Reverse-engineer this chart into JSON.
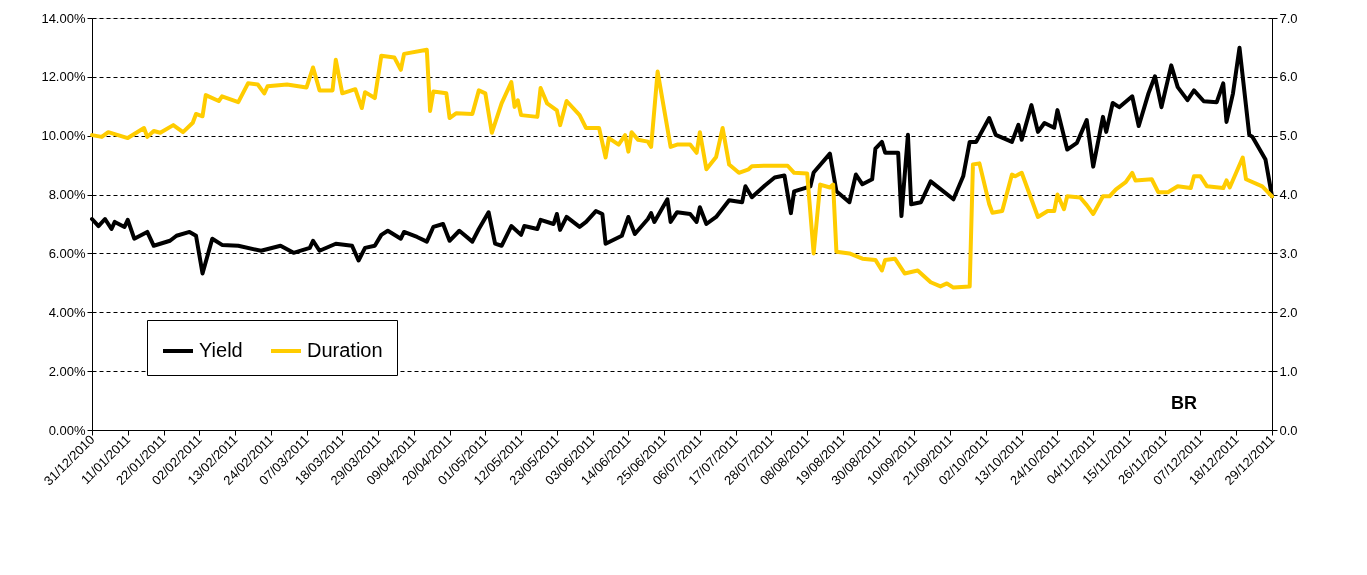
{
  "chart_data": {
    "type": "line",
    "xlim": [
      "2010-12-31",
      "2011-12-29"
    ],
    "xticks": [
      {
        "value": "2010-12-31",
        "label": "31/12/2010"
      },
      {
        "value": "2011-01-11",
        "label": "11/01/2011"
      },
      {
        "value": "2011-01-22",
        "label": "22/01/2011"
      },
      {
        "value": "2011-02-02",
        "label": "02/02/2011"
      },
      {
        "value": "2011-02-13",
        "label": "13/02/2011"
      },
      {
        "value": "2011-02-24",
        "label": "24/02/2011"
      },
      {
        "value": "2011-03-07",
        "label": "07/03/2011"
      },
      {
        "value": "2011-03-18",
        "label": "18/03/2011"
      },
      {
        "value": "2011-03-29",
        "label": "29/03/2011"
      },
      {
        "value": "2011-04-09",
        "label": "09/04/2011"
      },
      {
        "value": "2011-04-20",
        "label": "20/04/2011"
      },
      {
        "value": "2011-05-01",
        "label": "01/05/2011"
      },
      {
        "value": "2011-05-12",
        "label": "12/05/2011"
      },
      {
        "value": "2011-05-23",
        "label": "23/05/2011"
      },
      {
        "value": "2011-06-03",
        "label": "03/06/2011"
      },
      {
        "value": "2011-06-14",
        "label": "14/06/2011"
      },
      {
        "value": "2011-06-25",
        "label": "25/06/2011"
      },
      {
        "value": "2011-07-06",
        "label": "06/07/2011"
      },
      {
        "value": "2011-07-17",
        "label": "17/07/2011"
      },
      {
        "value": "2011-07-28",
        "label": "28/07/2011"
      },
      {
        "value": "2011-08-08",
        "label": "08/08/2011"
      },
      {
        "value": "2011-08-19",
        "label": "19/08/2011"
      },
      {
        "value": "2011-08-30",
        "label": "30/08/2011"
      },
      {
        "value": "2011-09-10",
        "label": "10/09/2011"
      },
      {
        "value": "2011-09-21",
        "label": "21/09/2011"
      },
      {
        "value": "2011-10-02",
        "label": "02/10/2011"
      },
      {
        "value": "2011-10-13",
        "label": "13/10/2011"
      },
      {
        "value": "2011-10-24",
        "label": "24/10/2011"
      },
      {
        "value": "2011-11-04",
        "label": "04/11/2011"
      },
      {
        "value": "2011-11-15",
        "label": "15/11/2011"
      },
      {
        "value": "2011-11-26",
        "label": "26/11/2011"
      },
      {
        "value": "2011-12-07",
        "label": "07/12/2011"
      },
      {
        "value": "2011-12-18",
        "label": "18/12/2011"
      },
      {
        "value": "2011-12-29",
        "label": "29/12/2011"
      }
    ],
    "ylim": [
      0,
      14
    ],
    "yticks": [
      {
        "value": 0,
        "label": "0.00%"
      },
      {
        "value": 2,
        "label": "2.00%"
      },
      {
        "value": 4,
        "label": "4.00%"
      },
      {
        "value": 6,
        "label": "6.00%"
      },
      {
        "value": 8,
        "label": "8.00%"
      },
      {
        "value": 10,
        "label": "10.00%"
      },
      {
        "value": 12,
        "label": "12.00%"
      },
      {
        "value": 14,
        "label": "14.00%"
      }
    ],
    "y2lim": [
      0,
      7
    ],
    "y2ticks": [
      {
        "value": 0,
        "label": "0.0"
      },
      {
        "value": 1,
        "label": "1.0"
      },
      {
        "value": 2,
        "label": "2.0"
      },
      {
        "value": 3,
        "label": "3.0"
      },
      {
        "value": 4,
        "label": "4.0"
      },
      {
        "value": 5,
        "label": "5.0"
      },
      {
        "value": 6,
        "label": "6.0"
      },
      {
        "value": 7,
        "label": "7.0"
      }
    ],
    "grid": "y",
    "legend": "bottom left",
    "marker": "none",
    "line_style": "solid",
    "annotations": [
      "BR"
    ],
    "series": [
      {
        "name": "Yield",
        "color": "#000000",
        "x": [
          "2010-12-31",
          "2011-01-02",
          "2011-01-04",
          "2011-01-06",
          "2011-01-07",
          "2011-01-10",
          "2011-01-11",
          "2011-01-13",
          "2011-01-17",
          "2011-01-19",
          "2011-01-24",
          "2011-01-26",
          "2011-01-30",
          "2011-02-01",
          "2011-02-03",
          "2011-02-06",
          "2011-02-09",
          "2011-02-14",
          "2011-02-21",
          "2011-02-27",
          "2011-03-03",
          "2011-03-08",
          "2011-03-09",
          "2011-03-11",
          "2011-03-16",
          "2011-03-21",
          "2011-03-23",
          "2011-03-25",
          "2011-03-28",
          "2011-03-30",
          "2011-04-01",
          "2011-04-05",
          "2011-04-06",
          "2011-04-10",
          "2011-04-13",
          "2011-04-15",
          "2011-04-18",
          "2011-04-20",
          "2011-04-23",
          "2011-04-27",
          "2011-04-29",
          "2011-05-02",
          "2011-05-04",
          "2011-05-06",
          "2011-05-09",
          "2011-05-12",
          "2011-05-13",
          "2011-05-17",
          "2011-05-18",
          "2011-05-22",
          "2011-05-23",
          "2011-05-24",
          "2011-05-26",
          "2011-05-30",
          "2011-06-01",
          "2011-06-04",
          "2011-06-06",
          "2011-06-07",
          "2011-06-12",
          "2011-06-14",
          "2011-06-16",
          "2011-06-20",
          "2011-06-21",
          "2011-06-22",
          "2011-06-26",
          "2011-06-27",
          "2011-06-29",
          "2011-07-03",
          "2011-07-05",
          "2011-07-06",
          "2011-07-08",
          "2011-07-11",
          "2011-07-15",
          "2011-07-19",
          "2011-07-20",
          "2011-07-22",
          "2011-07-26",
          "2011-07-29",
          "2011-08-01",
          "2011-08-03",
          "2011-08-04",
          "2011-08-09",
          "2011-08-10",
          "2011-08-15",
          "2011-08-17",
          "2011-08-21",
          "2011-08-23",
          "2011-08-25",
          "2011-08-28",
          "2011-08-29",
          "2011-08-31",
          "2011-09-01",
          "2011-09-02",
          "2011-09-05",
          "2011-09-06",
          "2011-09-08",
          "2011-09-09",
          "2011-09-12",
          "2011-09-15",
          "2011-09-22",
          "2011-09-25",
          "2011-09-27",
          "2011-09-29",
          "2011-10-03",
          "2011-10-05",
          "2011-10-10",
          "2011-10-12",
          "2011-10-13",
          "2011-10-16",
          "2011-10-18",
          "2011-10-20",
          "2011-10-23",
          "2011-10-24",
          "2011-10-27",
          "2011-10-30",
          "2011-11-02",
          "2011-11-04",
          "2011-11-07",
          "2011-11-08",
          "2011-11-10",
          "2011-11-12",
          "2011-11-16",
          "2011-11-18",
          "2011-11-21",
          "2011-11-23",
          "2011-11-25",
          "2011-11-28",
          "2011-11-30",
          "2011-12-03",
          "2011-12-05",
          "2011-12-08",
          "2011-12-12",
          "2011-12-14",
          "2011-12-15",
          "2011-12-17",
          "2011-12-19",
          "2011-12-22",
          "2011-12-23",
          "2011-12-27",
          "2011-12-29"
        ],
        "values": [
          7.17,
          6.93,
          7.17,
          6.83,
          7.07,
          6.9,
          7.14,
          6.5,
          6.73,
          6.26,
          6.43,
          6.6,
          6.73,
          6.6,
          5.32,
          6.5,
          6.29,
          6.26,
          6.09,
          6.26,
          6.02,
          6.19,
          6.43,
          6.09,
          6.33,
          6.26,
          5.76,
          6.19,
          6.26,
          6.63,
          6.77,
          6.5,
          6.73,
          6.56,
          6.4,
          6.9,
          7.0,
          6.43,
          6.77,
          6.4,
          6.83,
          7.4,
          6.33,
          6.26,
          6.93,
          6.63,
          6.93,
          6.83,
          7.14,
          7.0,
          7.34,
          6.8,
          7.24,
          6.9,
          7.07,
          7.44,
          7.34,
          6.33,
          6.6,
          7.24,
          6.66,
          7.17,
          7.37,
          7.07,
          7.84,
          7.07,
          7.4,
          7.34,
          7.07,
          7.57,
          7.0,
          7.24,
          7.81,
          7.74,
          8.28,
          7.91,
          8.31,
          8.58,
          8.65,
          7.37,
          8.11,
          8.28,
          8.75,
          9.39,
          8.11,
          7.74,
          8.68,
          8.35,
          8.52,
          9.56,
          9.79,
          9.42,
          9.42,
          9.42,
          7.27,
          10.03,
          7.67,
          7.74,
          8.45,
          7.84,
          8.62,
          9.79,
          9.79,
          10.6,
          10.03,
          9.79,
          10.37,
          9.86,
          11.04,
          10.13,
          10.43,
          10.27,
          10.87,
          9.53,
          9.76,
          10.53,
          8.95,
          10.64,
          10.13,
          11.11,
          10.97,
          11.34,
          10.33,
          11.44,
          12.02,
          10.97,
          12.39,
          11.65,
          11.21,
          11.54,
          11.17,
          11.14,
          11.78,
          10.47,
          11.44,
          12.99,
          10.03,
          9.96,
          9.19,
          7.94
        ]
      },
      {
        "name": "Duration",
        "color": "#ffcc00",
        "axis": "y2",
        "x": [
          "2010-12-31",
          "2011-01-03",
          "2011-01-05",
          "2011-01-11",
          "2011-01-16",
          "2011-01-17",
          "2011-01-19",
          "2011-01-21",
          "2011-01-25",
          "2011-01-28",
          "2011-01-31",
          "2011-02-01",
          "2011-02-03",
          "2011-02-04",
          "2011-02-08",
          "2011-02-09",
          "2011-02-14",
          "2011-02-17",
          "2011-02-20",
          "2011-02-22",
          "2011-02-23",
          "2011-03-01",
          "2011-03-07",
          "2011-03-09",
          "2011-03-11",
          "2011-03-15",
          "2011-03-16",
          "2011-03-18",
          "2011-03-22",
          "2011-03-24",
          "2011-03-25",
          "2011-03-28",
          "2011-03-30",
          "2011-04-03",
          "2011-04-05",
          "2011-04-06",
          "2011-04-13",
          "2011-04-14",
          "2011-04-15",
          "2011-04-19",
          "2011-04-20",
          "2011-04-22",
          "2011-04-27",
          "2011-04-29",
          "2011-05-01",
          "2011-05-03",
          "2011-05-06",
          "2011-05-09",
          "2011-05-10",
          "2011-05-11",
          "2011-05-12",
          "2011-05-17",
          "2011-05-18",
          "2011-05-20",
          "2011-05-23",
          "2011-05-24",
          "2011-05-26",
          "2011-05-30",
          "2011-06-01",
          "2011-06-05",
          "2011-06-07",
          "2011-06-08",
          "2011-06-11",
          "2011-06-13",
          "2011-06-14",
          "2011-06-15",
          "2011-06-17",
          "2011-06-20",
          "2011-06-21",
          "2011-06-23",
          "2011-06-27",
          "2011-06-29",
          "2011-07-03",
          "2011-07-05",
          "2011-07-06",
          "2011-07-08",
          "2011-07-11",
          "2011-07-13",
          "2011-07-15",
          "2011-07-18",
          "2011-07-21",
          "2011-07-22",
          "2011-07-26",
          "2011-08-02",
          "2011-08-04",
          "2011-08-08",
          "2011-08-10",
          "2011-08-12",
          "2011-08-15",
          "2011-08-16",
          "2011-08-17",
          "2011-08-21",
          "2011-08-25",
          "2011-08-29",
          "2011-08-31",
          "2011-09-01",
          "2011-09-04",
          "2011-09-07",
          "2011-09-11",
          "2011-09-15",
          "2011-09-18",
          "2011-09-20",
          "2011-09-22",
          "2011-09-27",
          "2011-09-28",
          "2011-09-30",
          "2011-10-03",
          "2011-10-04",
          "2011-10-07",
          "2011-10-10",
          "2011-10-11",
          "2011-10-13",
          "2011-10-18",
          "2011-10-21",
          "2011-10-23",
          "2011-10-24",
          "2011-10-26",
          "2011-10-27",
          "2011-10-31",
          "2011-11-02",
          "2011-11-04",
          "2011-11-07",
          "2011-11-09",
          "2011-11-11",
          "2011-11-14",
          "2011-11-16",
          "2011-11-17",
          "2011-11-22",
          "2011-11-24",
          "2011-11-27",
          "2011-11-30",
          "2011-12-04",
          "2011-12-05",
          "2011-12-07",
          "2011-12-09",
          "2011-12-14",
          "2011-12-15",
          "2011-12-16",
          "2011-12-20",
          "2011-12-21",
          "2011-12-26",
          "2011-12-29"
        ],
        "values": [
          5.01,
          4.98,
          5.06,
          4.96,
          5.13,
          4.98,
          5.08,
          5.05,
          5.18,
          5.06,
          5.22,
          5.37,
          5.33,
          5.69,
          5.59,
          5.67,
          5.57,
          5.89,
          5.87,
          5.72,
          5.84,
          5.87,
          5.82,
          6.16,
          5.77,
          5.77,
          6.29,
          5.72,
          5.79,
          5.47,
          5.74,
          5.64,
          6.36,
          6.33,
          6.12,
          6.39,
          6.46,
          5.42,
          5.75,
          5.72,
          5.3,
          5.38,
          5.37,
          5.77,
          5.72,
          5.05,
          5.55,
          5.91,
          5.49,
          5.6,
          5.35,
          5.32,
          5.81,
          5.55,
          5.43,
          5.18,
          5.59,
          5.35,
          5.13,
          5.13,
          4.63,
          4.96,
          4.85,
          5.01,
          4.73,
          5.06,
          4.93,
          4.9,
          4.81,
          6.09,
          4.81,
          4.85,
          4.85,
          4.71,
          5.06,
          4.43,
          4.64,
          5.13,
          4.51,
          4.37,
          4.43,
          4.48,
          4.49,
          4.49,
          4.37,
          4.36,
          3.0,
          4.17,
          4.12,
          4.17,
          3.03,
          3.0,
          2.91,
          2.89,
          2.71,
          2.89,
          2.91,
          2.66,
          2.71,
          2.51,
          2.44,
          2.49,
          2.42,
          2.44,
          4.51,
          4.53,
          3.84,
          3.69,
          3.72,
          4.34,
          4.31,
          4.37,
          3.62,
          3.72,
          3.72,
          4.0,
          3.75,
          3.97,
          3.95,
          3.82,
          3.67,
          3.97,
          3.97,
          4.09,
          4.21,
          4.37,
          4.24,
          4.26,
          4.04,
          4.04,
          4.14,
          4.11,
          4.31,
          4.31,
          4.14,
          4.11,
          4.24,
          4.12,
          4.63,
          4.26,
          4.14,
          3.97
        ]
      }
    ]
  }
}
